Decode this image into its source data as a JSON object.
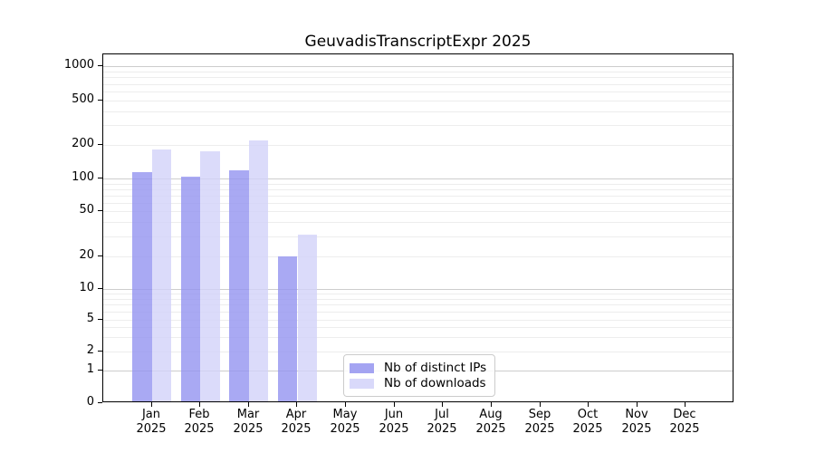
{
  "title": "GeuvadisTranscriptExpr 2025",
  "chart_data": {
    "type": "bar",
    "title": "GeuvadisTranscriptExpr 2025",
    "categories": [
      "Jan",
      "Feb",
      "Mar",
      "Apr",
      "May",
      "Jun",
      "Jul",
      "Aug",
      "Sep",
      "Oct",
      "Nov",
      "Dec"
    ],
    "category_year": "2025",
    "series": [
      {
        "name": "Nb of distinct IPs",
        "color": "#9494f0",
        "values": [
          110,
          100,
          115,
          19,
          0,
          0,
          0,
          0,
          0,
          0,
          0,
          0
        ]
      },
      {
        "name": "Nb of downloads",
        "color": "#d2d2f9",
        "values": [
          175,
          170,
          210,
          30,
          0,
          0,
          0,
          0,
          0,
          0,
          0,
          0
        ]
      }
    ],
    "xlabel": "",
    "ylabel": "",
    "yticks": [
      0,
      1,
      2,
      5,
      10,
      20,
      50,
      100,
      200,
      500,
      1000
    ],
    "yscale": "log-like with 0 baseline",
    "ylim": [
      0,
      1380
    ],
    "grid": true,
    "gridline_major_values": [
      1,
      10,
      100,
      1000
    ],
    "legend_position": "inside lower-center-left",
    "background": "#ffffff",
    "text_color": "#000000"
  }
}
